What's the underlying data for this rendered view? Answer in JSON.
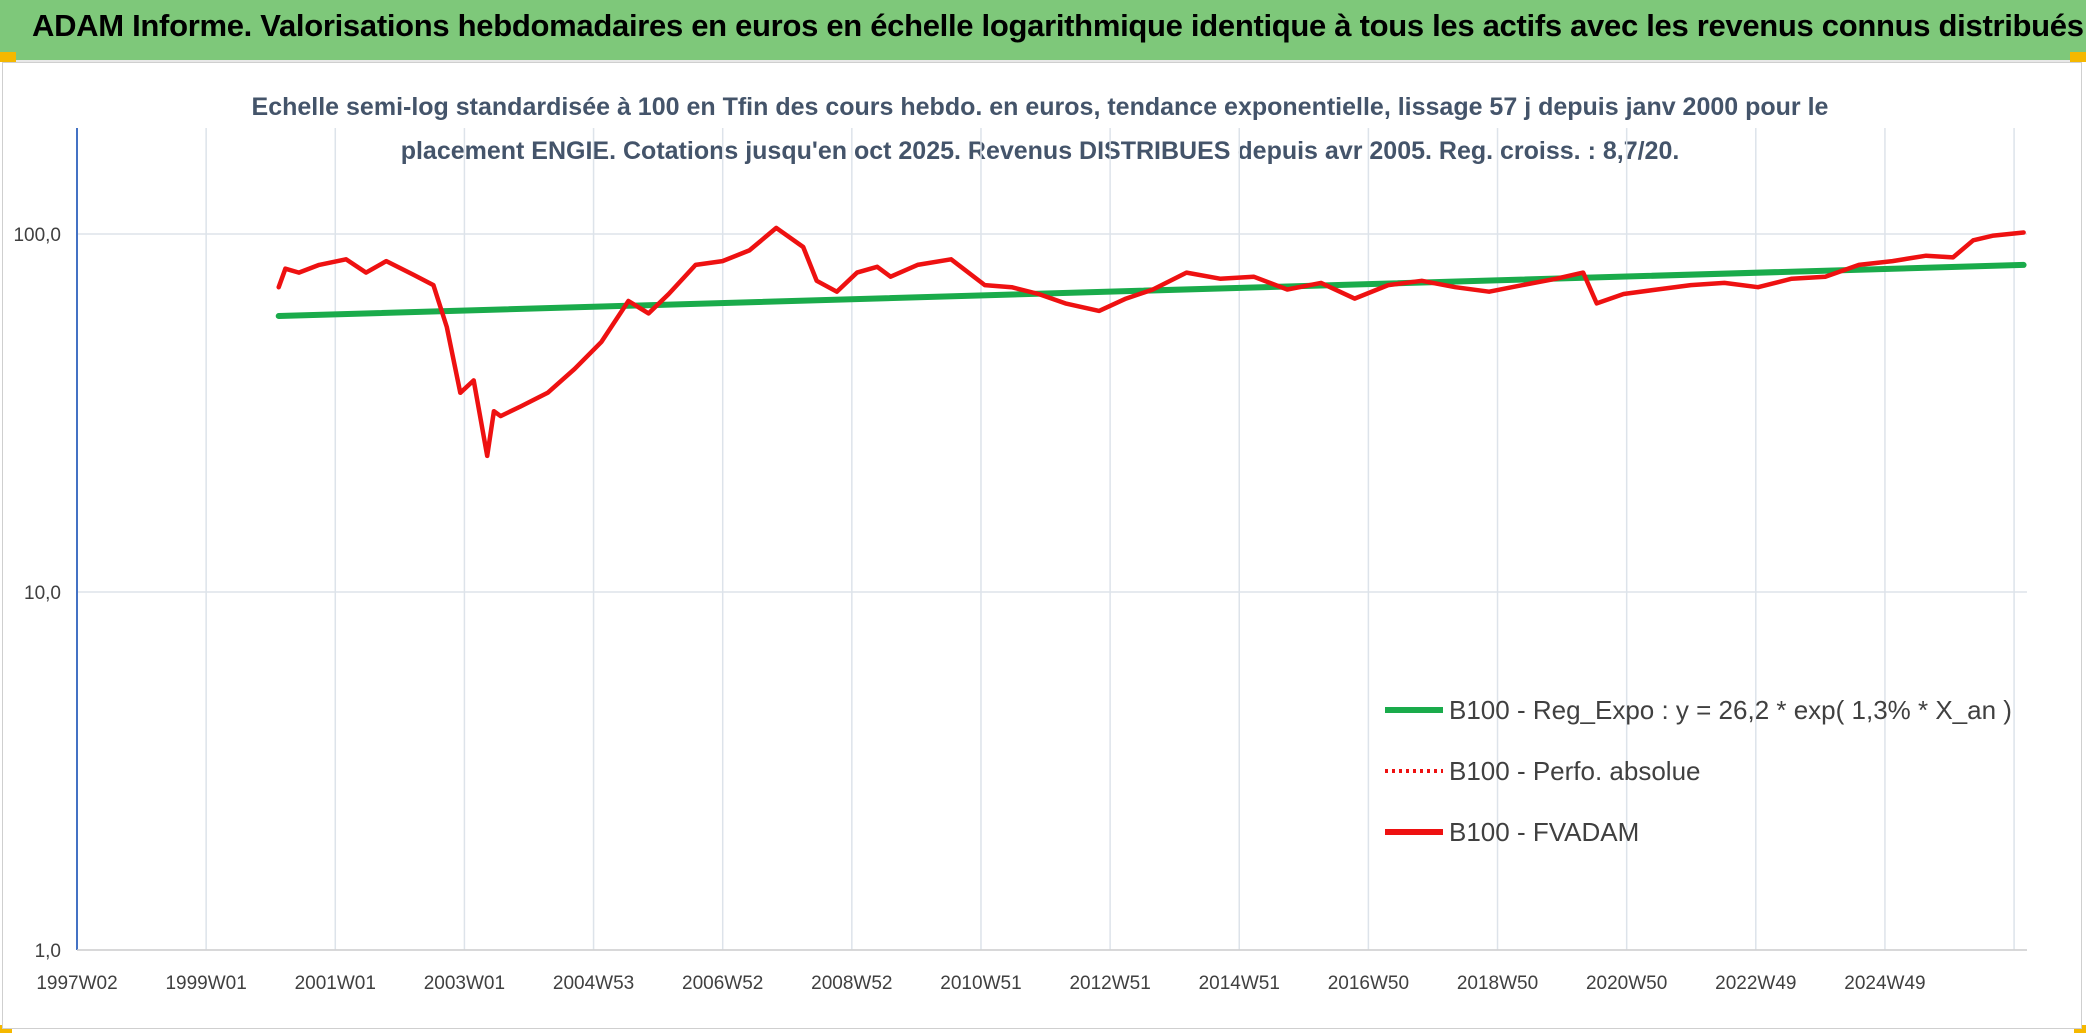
{
  "banner": {
    "title": "ADAM Informe. Valorisations hebdomadaires en euros en échelle logarithmique identique à tous les actifs avec les revenus connus distribués"
  },
  "colors": {
    "banner_bg": "#7ec87a",
    "accent_corner": "#f5b800",
    "trend": "#1aab4b",
    "price": "#ee1111",
    "grid": "#dde3ea",
    "y_axis": "#4472c4"
  },
  "chart_data": {
    "type": "line",
    "scale": "log",
    "title_lines": [
      "Echelle semi-log standardisée à 100 en Tfin des cours hebdo. en euros, tendance exponentielle, lissage 57 j depuis janv 2000 pour le",
      "placement ENGIE. Cotations jusqu'en oct 2025. Revenus DISTRIBUES depuis avr 2005. Reg. croiss. : 8,7/20."
    ],
    "xlim": [
      1997.0,
      2026.0
    ],
    "ylim": [
      1,
      200
    ],
    "y_ticks": [
      {
        "value": 100,
        "label": "100,0"
      },
      {
        "value": 10,
        "label": "10,0"
      },
      {
        "value": 1,
        "label": "1,0"
      }
    ],
    "x_tick_labels": [
      "1997W02",
      "1999W01",
      "2001W01",
      "2003W01",
      "2004W53",
      "2006W52",
      "2008W52",
      "2010W51",
      "2012W51",
      "2014W51",
      "2016W50",
      "2018W50",
      "2020W50",
      "2022W49",
      "2024W49"
    ],
    "legend": [
      {
        "label": "B100 - Reg_Expo : y = 26,2 * exp( 1,3% *  X_an )",
        "style": "solid-green"
      },
      {
        "label": "B100 - Perfo. absolue",
        "style": "dotted-red"
      },
      {
        "label": "B100 - FVADAM",
        "style": "solid-red"
      }
    ],
    "series": [
      {
        "name": "B100 - Reg_Expo",
        "x": [
          2000.0,
          2025.95
        ],
        "y": [
          59,
          82
        ]
      },
      {
        "name": "B100 - FVADAM",
        "x": [
          2000.0,
          2000.1,
          2000.3,
          2000.6,
          2001.0,
          2001.3,
          2001.6,
          2002.0,
          2002.3,
          2002.5,
          2002.7,
          2002.9,
          2003.1,
          2003.2,
          2003.3,
          2003.6,
          2004.0,
          2004.4,
          2004.8,
          2005.2,
          2005.5,
          2005.8,
          2006.2,
          2006.6,
          2007.0,
          2007.4,
          2007.8,
          2008.0,
          2008.3,
          2008.6,
          2008.9,
          2009.1,
          2009.5,
          2010.0,
          2010.5,
          2010.9,
          2011.3,
          2011.7,
          2012.2,
          2012.6,
          2013.0,
          2013.5,
          2014.0,
          2014.5,
          2015.0,
          2015.5,
          2016.0,
          2016.5,
          2017.0,
          2017.5,
          2018.0,
          2018.5,
          2019.0,
          2019.4,
          2019.6,
          2020.0,
          2020.5,
          2021.0,
          2021.5,
          2022.0,
          2022.5,
          2023.0,
          2023.5,
          2024.0,
          2024.5,
          2024.9,
          2025.2,
          2025.5,
          2025.95
        ],
        "y": [
          71,
          80,
          78,
          82,
          85,
          78,
          84,
          77,
          72,
          55,
          36,
          39,
          24,
          32,
          31,
          33,
          36,
          42,
          50,
          65,
          60,
          68,
          82,
          84,
          90,
          104,
          92,
          74,
          69,
          78,
          81,
          76,
          82,
          85,
          72,
          71,
          68,
          64,
          61,
          66,
          70,
          78,
          75,
          76,
          70,
          73,
          66,
          72,
          74,
          71,
          69,
          72,
          75,
          78,
          64,
          68,
          70,
          72,
          73,
          71,
          75,
          76,
          82,
          84,
          87,
          86,
          96,
          99,
          101
        ]
      }
    ]
  }
}
